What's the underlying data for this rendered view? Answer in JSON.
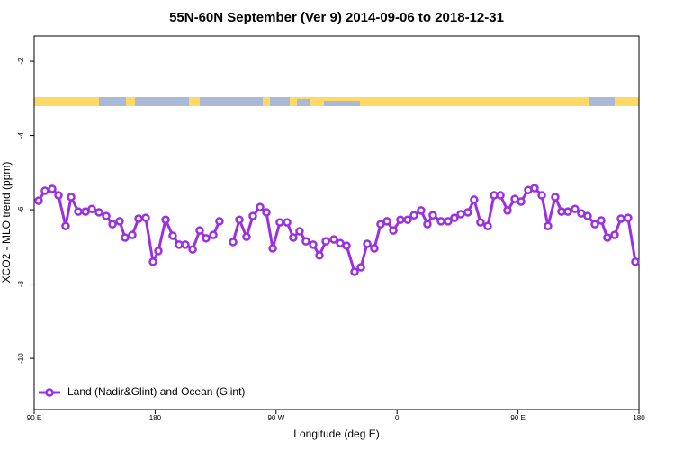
{
  "chart_data": {
    "type": "line",
    "title": "55N-60N September (Ver 9)   2014-09-06 to 2018-12-31",
    "xlabel": "Longitude (deg E)",
    "ylabel": "XCO2 - MLO trend (ppm)",
    "xlim": [
      90,
      540
    ],
    "ylim": [
      -11.38,
      -1.32
    ],
    "xticks": [
      {
        "value": 90,
        "label": "90 E"
      },
      180,
      {
        "value": 270,
        "label": "90 W"
      },
      {
        "value": 360,
        "label": "0"
      },
      {
        "value": 450,
        "label": "90 E"
      },
      {
        "value": 540,
        "label": "180"
      }
    ],
    "yticks": [
      -2,
      -4,
      -6,
      -8,
      -10
    ],
    "legend": "bottom left",
    "series": [
      {
        "name": "Land (Nadir&Glint) and Ocean (Glint)",
        "color": "#9b30e0",
        "x": [
          93.3,
          98.0,
          103.4,
          108.1,
          113.4,
          117.5,
          122.8,
          128.2,
          132.9,
          138.2,
          143.6,
          148.3,
          153.6,
          157.6,
          163.0,
          167.7,
          173.0,
          178.4,
          182.4,
          187.8,
          193.1,
          197.8,
          202.5,
          207.9,
          213.2,
          217.9,
          223.3,
          227.9,
          233.0,
          238.0,
          242.7,
          248.0,
          252.7,
          258.1,
          262.8,
          267.5,
          272.8,
          278.2,
          282.8,
          287.5,
          292.2,
          297.6,
          302.3,
          307.0,
          313.0,
          317.7,
          322.4,
          328.4,
          333.1,
          337.8,
          343.1,
          347.8,
          352.5,
          357.2,
          362.5,
          367.9,
          372.6,
          377.9,
          382.6,
          386.6,
          392.7,
          398.0,
          402.7,
          407.4,
          412.7,
          417.4,
          422.1,
          427.5,
          432.2,
          436.9,
          442.2,
          447.6,
          452.3,
          457.6,
          462.3,
          467.7,
          472.3,
          477.7,
          482.4,
          487.1,
          492.4,
          497.1,
          501.8,
          507.2,
          511.9,
          516.5,
          521.9,
          526.6,
          531.9,
          537.3
        ],
        "values": [
          -5.76,
          -5.49,
          -5.44,
          -5.61,
          -6.44,
          -5.66,
          -6.05,
          -6.05,
          -5.98,
          -6.07,
          -6.17,
          -6.39,
          -6.31,
          -6.75,
          -6.68,
          -6.24,
          -6.22,
          -7.4,
          -7.11,
          -6.27,
          -6.7,
          -6.94,
          -6.94,
          -7.07,
          -6.56,
          -6.77,
          -6.68,
          -6.31,
          null,
          -6.87,
          -6.27,
          -6.73,
          -6.17,
          -5.93,
          -6.07,
          -7.04,
          -6.34,
          -6.34,
          -6.75,
          -6.58,
          -6.85,
          -6.94,
          -7.23,
          -6.85,
          -6.8,
          -6.9,
          -6.97,
          -7.67,
          -7.55,
          -6.92,
          -7.04,
          -6.39,
          -6.31,
          -6.56,
          -6.27,
          -6.27,
          -6.15,
          -6.02,
          -6.39,
          -6.15,
          -6.31,
          -6.31,
          -6.22,
          -6.12,
          -6.07,
          -5.73,
          -6.34,
          -6.44,
          -5.61,
          -5.61,
          -6.02,
          -5.71,
          -5.78,
          -5.47,
          -5.42,
          -5.61,
          -6.44,
          -5.66,
          -6.05,
          -6.05,
          -5.98,
          -6.1,
          -6.17,
          -6.39,
          -6.29,
          -6.75,
          -6.68,
          -6.24,
          -6.22,
          -7.4
        ]
      }
    ]
  }
}
